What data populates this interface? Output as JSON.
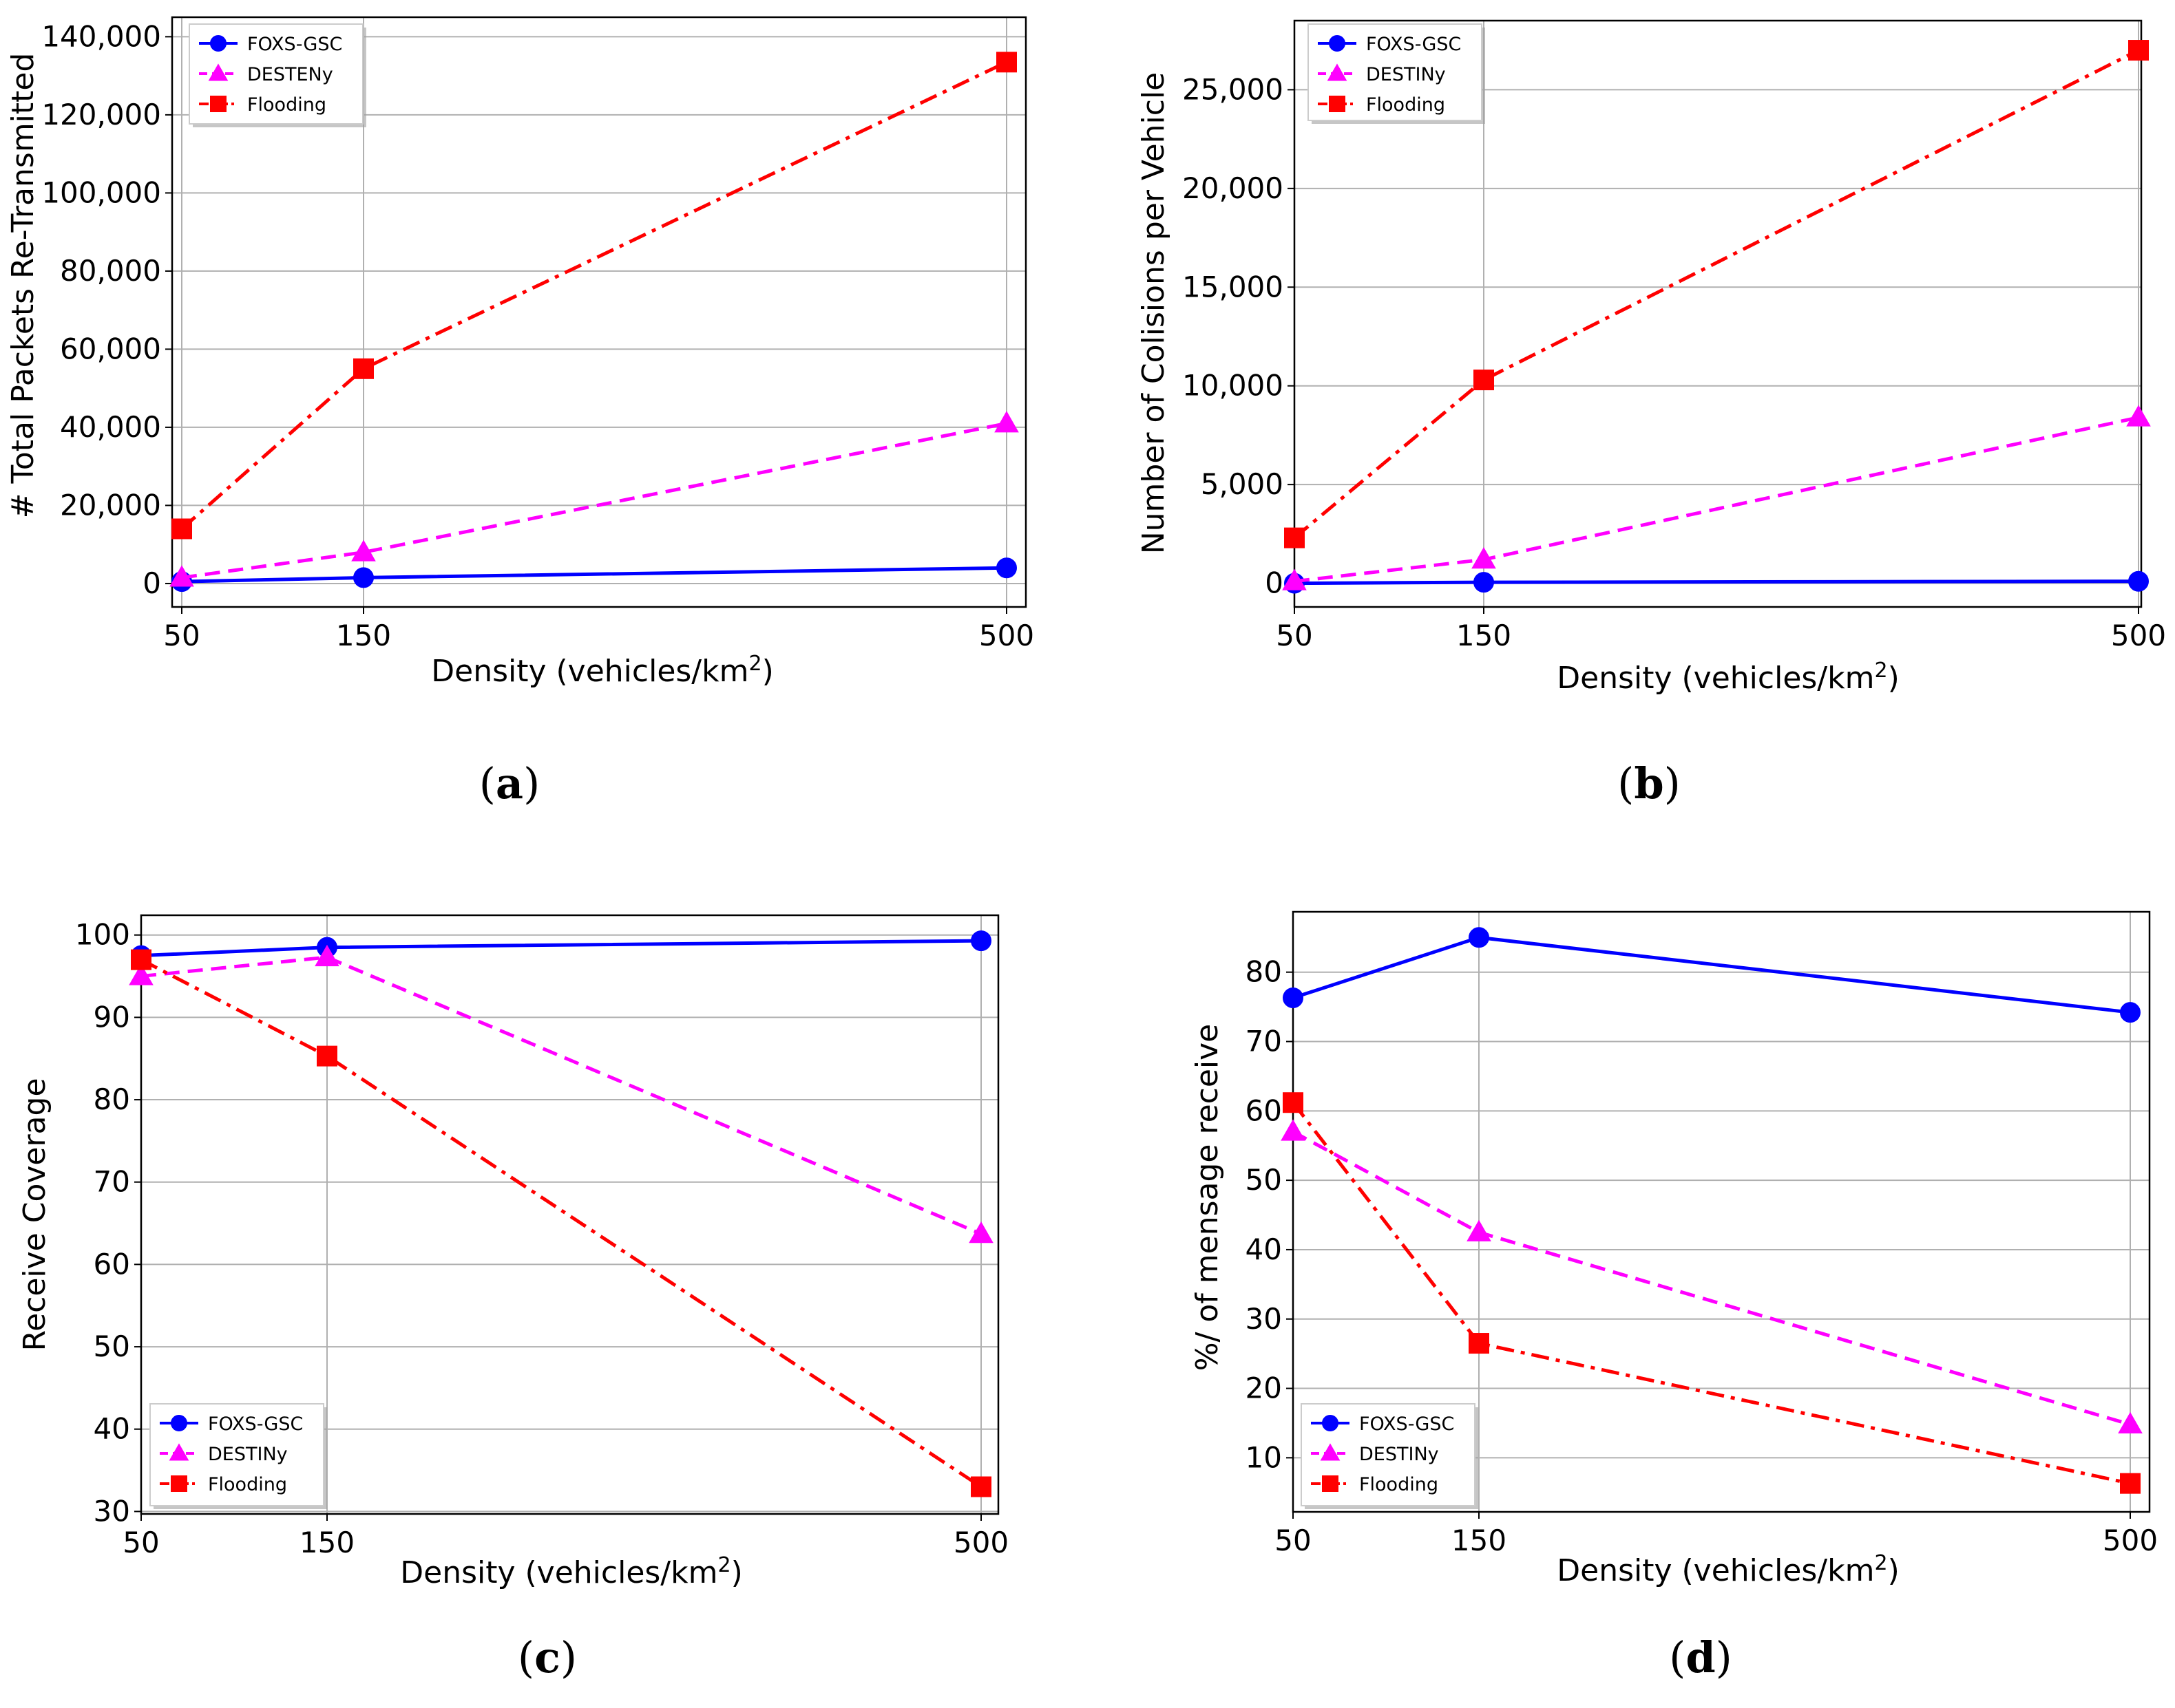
{
  "chart_data": [
    {
      "type": "line",
      "caption": "a",
      "xlabel": "Density (vehicles/km",
      "xlabel_sup": "2",
      "xlabel_end": ")",
      "ylabel": "# Total Packets Re-Transmitted",
      "categories": [
        "50",
        "150",
        "500"
      ],
      "x": [
        50,
        150,
        500
      ],
      "xlim": [
        50,
        500
      ],
      "ylim": [
        -6000,
        145000
      ],
      "yticks": [
        0,
        20000,
        40000,
        60000,
        80000,
        100000,
        120000,
        140000
      ],
      "ytick_labels": [
        "0",
        "20,000",
        "40,000",
        "60,000",
        "80,000",
        "100,000",
        "120,000",
        "140,000"
      ],
      "legend_position": "top-left",
      "series": [
        {
          "name": "FOXS-GSC",
          "values": [
            500,
            1500,
            4000
          ],
          "color": "#0000ff",
          "marker": "circle",
          "dash": "solid"
        },
        {
          "name": "DESTENy",
          "values": [
            1500,
            8000,
            41000
          ],
          "color": "#ff00ff",
          "marker": "triangle",
          "dash": "dashed"
        },
        {
          "name": "Flooding",
          "values": [
            14000,
            55000,
            133500
          ],
          "color": "#ff0000",
          "marker": "square",
          "dash": "dashdot"
        }
      ]
    },
    {
      "type": "line",
      "caption": "b",
      "xlabel": "Density (vehicles/km",
      "xlabel_sup": "2",
      "xlabel_end": ")",
      "ylabel": "Number of Colisions per Vehicle",
      "categories": [
        "50",
        "150",
        "500"
      ],
      "x": [
        50,
        150,
        500
      ],
      "xlim": [
        50,
        500
      ],
      "ylim": [
        -1200,
        28500
      ],
      "yticks": [
        0,
        5000,
        10000,
        15000,
        20000,
        25000
      ],
      "ytick_labels": [
        "0",
        "5,000",
        "10,000",
        "15,000",
        "20,000",
        "25,000"
      ],
      "legend_position": "top-left",
      "series": [
        {
          "name": "FOXS-GSC",
          "values": [
            0,
            50,
            100
          ],
          "color": "#0000ff",
          "marker": "circle",
          "dash": "solid"
        },
        {
          "name": "DESTINy",
          "values": [
            100,
            1200,
            8400
          ],
          "color": "#ff00ff",
          "marker": "triangle",
          "dash": "dashed"
        },
        {
          "name": "Flooding",
          "values": [
            2300,
            10300,
            27000
          ],
          "color": "#ff0000",
          "marker": "square",
          "dash": "dashdot"
        }
      ]
    },
    {
      "type": "line",
      "caption": "c",
      "xlabel": "Density (vehicles/km",
      "xlabel_sup": "2",
      "xlabel_end": ")",
      "ylabel": "Receive Coverage",
      "categories": [
        "50",
        "150",
        "500"
      ],
      "x": [
        50,
        150,
        500
      ],
      "xlim": [
        50,
        500
      ],
      "ylim": [
        29.7,
        102.4
      ],
      "yticks": [
        30,
        40,
        50,
        60,
        70,
        80,
        90,
        100
      ],
      "ytick_labels": [
        "30",
        "40",
        "50",
        "60",
        "70",
        "80",
        "90",
        "100"
      ],
      "legend_position": "bottom-left",
      "series": [
        {
          "name": "FOXS-GSC",
          "values": [
            97.5,
            98.5,
            99.3
          ],
          "color": "#0000ff",
          "marker": "circle",
          "dash": "solid"
        },
        {
          "name": "DESTINy",
          "values": [
            95,
            97.3,
            63.7
          ],
          "color": "#ff00ff",
          "marker": "triangle",
          "dash": "dashed"
        },
        {
          "name": "Flooding",
          "values": [
            97,
            85.3,
            33
          ],
          "color": "#ff0000",
          "marker": "square",
          "dash": "dashdot"
        }
      ]
    },
    {
      "type": "line",
      "caption": "d",
      "xlabel": "Density (vehicles/km",
      "xlabel_sup": "2",
      "xlabel_end": ")",
      "ylabel": "%/ of mensage receive",
      "categories": [
        "50",
        "150",
        "500"
      ],
      "x": [
        50,
        150,
        500
      ],
      "xlim": [
        50,
        500
      ],
      "ylim": [
        2.2,
        88.7
      ],
      "yticks": [
        10,
        20,
        30,
        40,
        50,
        60,
        70,
        80
      ],
      "ytick_labels": [
        "10",
        "20",
        "30",
        "40",
        "50",
        "60",
        "70",
        "80"
      ],
      "legend_position": "bottom-left",
      "series": [
        {
          "name": "FOXS-GSC",
          "values": [
            76.3,
            85,
            74.2
          ],
          "color": "#0000ff",
          "marker": "circle",
          "dash": "solid"
        },
        {
          "name": "DESTINy",
          "values": [
            57,
            42.5,
            14.8
          ],
          "color": "#ff00ff",
          "marker": "triangle",
          "dash": "dashed"
        },
        {
          "name": "Flooding",
          "values": [
            61.2,
            26.5,
            6.3
          ],
          "color": "#ff0000",
          "marker": "square",
          "dash": "dashdot"
        }
      ]
    }
  ]
}
